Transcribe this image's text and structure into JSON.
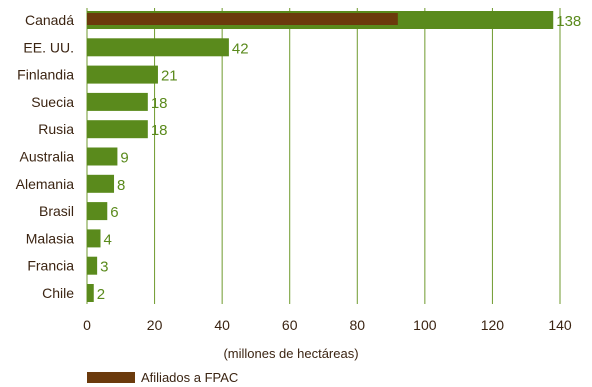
{
  "chart_data": {
    "type": "bar",
    "orientation": "horizontal",
    "categories": [
      "Canadá",
      "EE. UU.",
      "Finlandia",
      "Suecia",
      "Rusia",
      "Australia",
      "Alemania",
      "Brasil",
      "Malasia",
      "Francia",
      "Chile"
    ],
    "series": [
      {
        "values": [
          138,
          42,
          21,
          18,
          18,
          9,
          8,
          6,
          4,
          3,
          2
        ],
        "color": "#5a8a1c"
      },
      {
        "name": "Afiliados a FPAC",
        "values": [
          92,
          null,
          null,
          null,
          null,
          null,
          null,
          null,
          null,
          null,
          null
        ],
        "color": "#6b3a0c"
      }
    ],
    "data_labels": [
      "138",
      "42",
      "21",
      "18",
      "18",
      "9",
      "8",
      "6",
      "4",
      "3",
      "2"
    ],
    "xlabel": "(millones de hectáreas)",
    "xlim": [
      0,
      140
    ],
    "xticks": [
      "0",
      "20",
      "40",
      "60",
      "80",
      "100",
      "120",
      "140"
    ],
    "grid": "vertical",
    "legend": {
      "position": "bottom-left",
      "entries": [
        "Afiliados a FPAC"
      ]
    }
  },
  "colors": {
    "total_bar": "#5a8a1c",
    "fpac_bar": "#6b3a0c",
    "gridline": "#6f9a2e",
    "text": "#3b2412",
    "value_text": "#5a8a1c"
  }
}
